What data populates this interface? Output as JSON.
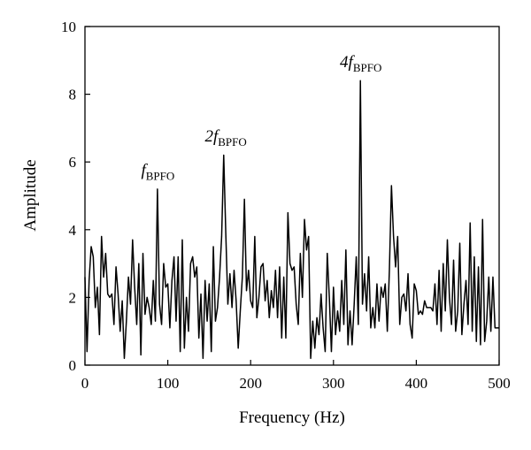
{
  "chart_data": {
    "type": "line",
    "xlabel": "Frequency (Hz)",
    "ylabel": "Amplitude",
    "xlim": [
      0,
      500
    ],
    "xticks": [
      0,
      100,
      200,
      300,
      400,
      500
    ],
    "ylim": [
      0,
      10
    ],
    "yticks": [
      0,
      2,
      4,
      6,
      8,
      10
    ],
    "grid": false,
    "annotations": [
      {
        "text": "f",
        "subscript": "BPFO",
        "x": 88,
        "y": 5.6
      },
      {
        "text": "2f",
        "subscript": "BPFO",
        "x": 170,
        "y": 6.6
      },
      {
        "text": "4f",
        "subscript": "BPFO",
        "x": 333,
        "y": 8.8
      }
    ],
    "x": [
      0,
      2.5,
      5,
      7.5,
      10,
      12.5,
      15,
      17.5,
      20,
      22.5,
      25,
      27.5,
      30,
      32.5,
      35,
      37.5,
      40,
      42.5,
      45,
      47.5,
      50,
      52.5,
      55,
      57.5,
      60,
      62.5,
      65,
      67.5,
      70,
      72.5,
      75,
      77.5,
      80,
      82.5,
      85,
      87.5,
      90,
      92.5,
      95,
      97.5,
      100,
      102.5,
      105,
      107.5,
      110,
      112.5,
      115,
      117.5,
      120,
      122.5,
      125,
      127.5,
      130,
      132.5,
      135,
      137.5,
      140,
      142.5,
      145,
      147.5,
      150,
      152.5,
      155,
      157.5,
      160,
      162.5,
      165,
      167.5,
      170,
      172.5,
      175,
      177.5,
      180,
      182.5,
      185,
      187.5,
      190,
      192.5,
      195,
      197.5,
      200,
      202.5,
      205,
      207.5,
      210,
      212.5,
      215,
      217.5,
      220,
      222.5,
      225,
      227.5,
      230,
      232.5,
      235,
      237.5,
      240,
      242.5,
      245,
      247.5,
      250,
      252.5,
      255,
      257.5,
      260,
      262.5,
      265,
      267.5,
      270,
      272.5,
      275,
      277.5,
      280,
      282.5,
      285,
      287.5,
      290,
      292.5,
      295,
      297.5,
      300,
      302.5,
      305,
      307.5,
      310,
      312.5,
      315,
      317.5,
      320,
      322.5,
      325,
      327.5,
      330,
      332.5,
      335,
      337.5,
      340,
      342.5,
      345,
      347.5,
      350,
      352.5,
      355,
      357.5,
      360,
      362.5,
      365,
      367.5,
      370,
      372.5,
      375,
      377.5,
      380,
      382.5,
      385,
      387.5,
      390,
      392.5,
      395,
      397.5,
      400,
      402.5,
      405,
      407.5,
      410,
      412.5,
      415,
      417.5,
      420,
      422.5,
      425,
      427.5,
      430,
      432.5,
      435,
      437.5,
      440,
      442.5,
      445,
      447.5,
      450,
      452.5,
      455,
      457.5,
      460,
      462.5,
      465,
      467.5,
      470,
      472.5,
      475,
      477.5,
      480,
      482.5,
      485,
      487.5,
      490,
      492.5,
      495,
      497.5,
      500
    ],
    "series": [
      {
        "color": "#000000",
        "values": [
          2.6,
          0.4,
          2.5,
          3.5,
          3.2,
          1.7,
          2.3,
          0.9,
          3.8,
          2.6,
          3.3,
          2.1,
          2.0,
          2.1,
          1.2,
          2.9,
          2.1,
          1.0,
          1.9,
          0.2,
          1.3,
          2.6,
          1.8,
          3.7,
          2.3,
          1.2,
          3.0,
          0.3,
          3.3,
          1.5,
          2.0,
          1.7,
          1.2,
          2.5,
          1.3,
          5.2,
          1.8,
          1.2,
          3.0,
          2.3,
          2.4,
          1.1,
          2.5,
          3.2,
          1.3,
          3.2,
          0.4,
          3.7,
          0.5,
          2.0,
          1.0,
          3.0,
          3.2,
          2.6,
          2.9,
          0.8,
          2.1,
          0.2,
          2.5,
          1.3,
          2.4,
          0.4,
          3.5,
          1.3,
          1.7,
          2.6,
          3.8,
          6.2,
          3.9,
          1.8,
          2.7,
          1.7,
          2.8,
          1.9,
          0.5,
          1.6,
          2.6,
          4.9,
          2.2,
          2.8,
          1.9,
          1.7,
          3.8,
          1.4,
          2.0,
          2.9,
          3.0,
          1.9,
          2.5,
          1.4,
          2.2,
          1.7,
          2.8,
          1.4,
          2.9,
          0.8,
          2.6,
          0.8,
          4.5,
          3.0,
          2.8,
          2.9,
          1.8,
          1.2,
          3.3,
          2.0,
          4.3,
          3.4,
          3.8,
          0.2,
          1.3,
          0.5,
          1.4,
          0.9,
          2.1,
          1.1,
          0.4,
          3.3,
          2.0,
          0.4,
          2.3,
          0.9,
          1.6,
          1.0,
          2.5,
          1.2,
          3.4,
          0.6,
          1.6,
          0.6,
          1.8,
          3.2,
          1.2,
          8.4,
          1.8,
          2.7,
          1.6,
          3.2,
          1.1,
          1.7,
          1.1,
          2.4,
          1.3,
          2.3,
          2.0,
          2.4,
          1.0,
          2.8,
          5.3,
          3.8,
          2.9,
          3.8,
          1.2,
          2.0,
          2.1,
          1.6,
          2.7,
          1.2,
          0.8,
          2.4,
          2.2,
          1.5,
          1.6,
          1.5,
          1.9,
          1.7,
          1.7,
          1.7,
          1.6,
          2.4,
          1.2,
          2.8,
          1.0,
          3.0,
          1.6,
          3.7,
          2.0,
          1.2,
          3.1,
          1.0,
          1.6,
          3.6,
          0.9,
          1.8,
          2.5,
          1.2,
          4.2,
          1.0,
          3.2,
          0.7,
          2.9,
          0.6,
          4.3,
          0.7,
          1.3,
          2.6,
          1.0,
          2.6,
          1.1,
          1.1,
          1.1
        ]
      }
    ]
  }
}
